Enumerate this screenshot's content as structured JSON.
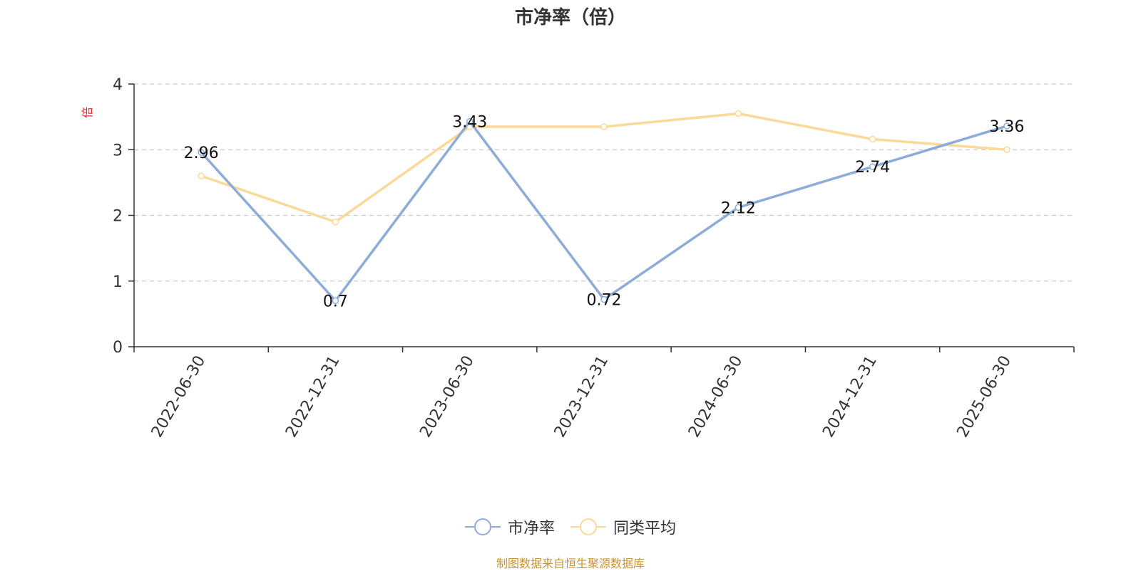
{
  "title": "市净率（倍）",
  "source_note": "制图数据来自恒生聚源数据库",
  "colors": {
    "series_main": "#8eacd8",
    "series_avg": "#fbd999",
    "axis": "#333333",
    "grid": "#cccccc",
    "unit_label": "#e8262b",
    "source_note": "#c8962e"
  },
  "legend": [
    {
      "label": "市净率",
      "color": "#8eacd8",
      "icon": "circle-line-icon"
    },
    {
      "label": "同类平均",
      "color": "#fbd999",
      "icon": "circle-line-icon"
    }
  ],
  "chart_data": {
    "type": "line",
    "title": "市净率（倍）",
    "xlabel": "",
    "ylabel": "倍",
    "ylim": [
      0,
      4
    ],
    "yticks": [
      0,
      1,
      2,
      3,
      4
    ],
    "grid": true,
    "legend_position": "bottom-center",
    "categories": [
      "2022-06-30",
      "2022-12-31",
      "2023-06-30",
      "2023-12-31",
      "2024-06-30",
      "2024-12-31",
      "2025-06-30"
    ],
    "series": [
      {
        "name": "市净率",
        "values": [
          2.96,
          0.7,
          3.43,
          0.72,
          2.12,
          2.74,
          3.36
        ],
        "labels": [
          "2.96",
          "0.7",
          "3.43",
          "0.72",
          "2.12",
          "2.74",
          "3.36"
        ]
      },
      {
        "name": "同类平均",
        "values": [
          2.6,
          1.9,
          3.35,
          3.35,
          3.55,
          3.16,
          3.0
        ]
      }
    ]
  }
}
